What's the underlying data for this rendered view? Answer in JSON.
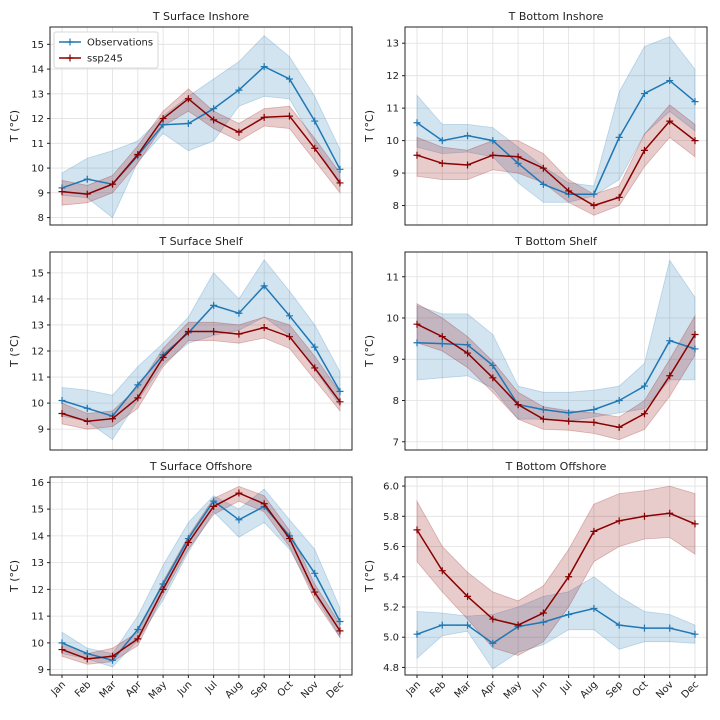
{
  "figure": {
    "colors": {
      "observations": "#1f77b4",
      "ssp245": "#8b0000",
      "grid": "#e0e0e0",
      "frame": "#222222"
    },
    "legend": {
      "placement": "top-left",
      "panel": 0,
      "entries": [
        "Observations",
        "ssp245"
      ]
    }
  },
  "chart_data": [
    {
      "type": "line",
      "title": "T Surface Inshore",
      "ylabel": "T (°C)",
      "categories": [
        "Jan",
        "Feb",
        "Mar",
        "Apr",
        "May",
        "Jun",
        "Jul",
        "Aug",
        "Sep",
        "Oct",
        "Nov",
        "Dec"
      ],
      "ylim": [
        7.7,
        15.7
      ],
      "yticks": [
        8,
        9,
        10,
        11,
        12,
        13,
        14,
        15
      ],
      "show_x_ticklabels": false,
      "grid": true,
      "series": [
        {
          "name": "Observations",
          "color": "#1f77b4",
          "values": [
            9.2,
            9.55,
            9.35,
            10.5,
            11.75,
            11.8,
            12.4,
            13.15,
            14.1,
            13.6,
            11.9,
            9.95
          ],
          "lower": [
            8.9,
            8.8,
            8.0,
            10.25,
            11.4,
            10.7,
            11.1,
            12.5,
            12.9,
            12.8,
            11.0,
            9.3
          ],
          "upper": [
            9.8,
            10.4,
            10.7,
            11.1,
            12.1,
            12.9,
            13.6,
            14.3,
            15.35,
            14.5,
            12.9,
            10.75
          ]
        },
        {
          "name": "ssp245",
          "color": "#8b0000",
          "values": [
            9.05,
            8.95,
            9.35,
            10.55,
            12.0,
            12.8,
            11.95,
            11.45,
            12.05,
            12.1,
            10.8,
            9.4
          ],
          "lower": [
            8.5,
            8.6,
            9.0,
            10.2,
            11.7,
            12.3,
            11.6,
            11.1,
            11.7,
            11.6,
            10.3,
            9.0
          ],
          "upper": [
            9.5,
            9.3,
            9.7,
            10.9,
            12.3,
            13.2,
            12.3,
            11.8,
            12.4,
            12.5,
            11.2,
            9.8
          ]
        }
      ]
    },
    {
      "type": "line",
      "title": "T Bottom Inshore",
      "ylabel": "T (°C)",
      "categories": [
        "Jan",
        "Feb",
        "Mar",
        "Apr",
        "May",
        "Jun",
        "Jul",
        "Aug",
        "Sep",
        "Oct",
        "Nov",
        "Dec"
      ],
      "ylim": [
        7.4,
        13.5
      ],
      "yticks": [
        8,
        9,
        10,
        11,
        12,
        13
      ],
      "show_x_ticklabels": false,
      "grid": true,
      "series": [
        {
          "name": "Observations",
          "color": "#1f77b4",
          "values": [
            10.55,
            10.0,
            10.15,
            10.0,
            9.3,
            8.65,
            8.35,
            8.35,
            10.1,
            11.45,
            11.85,
            11.2
          ],
          "lower": [
            9.8,
            9.6,
            9.65,
            9.5,
            8.7,
            8.1,
            8.1,
            8.3,
            8.8,
            10.2,
            10.9,
            10.3
          ],
          "upper": [
            11.4,
            10.5,
            10.5,
            10.4,
            9.8,
            9.2,
            8.7,
            8.6,
            11.5,
            12.9,
            13.2,
            12.2
          ]
        },
        {
          "name": "ssp245",
          "color": "#8b0000",
          "values": [
            9.55,
            9.3,
            9.25,
            9.55,
            9.5,
            9.15,
            8.45,
            8.0,
            8.25,
            9.7,
            10.6,
            10.0
          ],
          "lower": [
            8.9,
            8.8,
            8.8,
            9.1,
            9.0,
            8.7,
            8.1,
            7.7,
            8.0,
            9.2,
            10.1,
            9.5
          ],
          "upper": [
            10.1,
            9.8,
            9.7,
            10.0,
            10.0,
            9.6,
            8.8,
            8.35,
            8.6,
            10.2,
            11.1,
            10.5
          ]
        }
      ]
    },
    {
      "type": "line",
      "title": "T Surface Shelf",
      "ylabel": "T (°C)",
      "categories": [
        "Jan",
        "Feb",
        "Mar",
        "Apr",
        "May",
        "Jun",
        "Jul",
        "Aug",
        "Sep",
        "Oct",
        "Nov",
        "Dec"
      ],
      "ylim": [
        8.2,
        15.8
      ],
      "yticks": [
        9,
        10,
        11,
        12,
        13,
        14,
        15
      ],
      "show_x_ticklabels": false,
      "grid": true,
      "series": [
        {
          "name": "Observations",
          "color": "#1f77b4",
          "values": [
            10.1,
            9.8,
            9.5,
            10.7,
            11.85,
            12.7,
            13.75,
            13.45,
            14.5,
            13.35,
            12.15,
            10.45
          ],
          "lower": [
            9.5,
            9.3,
            8.6,
            10.1,
            11.5,
            12.3,
            12.6,
            12.8,
            13.3,
            12.6,
            11.3,
            9.9
          ],
          "upper": [
            10.6,
            10.5,
            10.3,
            11.4,
            12.3,
            13.3,
            15.0,
            14.0,
            15.5,
            14.3,
            13.0,
            11.2
          ]
        },
        {
          "name": "ssp245",
          "color": "#8b0000",
          "values": [
            9.6,
            9.3,
            9.4,
            10.2,
            11.75,
            12.75,
            12.75,
            12.65,
            12.9,
            12.55,
            11.35,
            10.05
          ],
          "lower": [
            9.2,
            9.0,
            9.1,
            9.8,
            11.4,
            12.4,
            12.4,
            12.3,
            12.5,
            12.1,
            10.9,
            9.7
          ],
          "upper": [
            10.0,
            9.6,
            9.7,
            10.6,
            12.1,
            13.1,
            13.1,
            13.0,
            13.3,
            13.0,
            11.8,
            10.4
          ]
        }
      ]
    },
    {
      "type": "line",
      "title": "T Bottom Shelf",
      "ylabel": "T (°C)",
      "categories": [
        "Jan",
        "Feb",
        "Mar",
        "Apr",
        "May",
        "Jun",
        "Jul",
        "Aug",
        "Sep",
        "Oct",
        "Nov",
        "Dec"
      ],
      "ylim": [
        6.8,
        11.6
      ],
      "yticks": [
        7,
        8,
        9,
        10,
        11
      ],
      "show_x_ticklabels": false,
      "grid": true,
      "series": [
        {
          "name": "Observations",
          "color": "#1f77b4",
          "values": [
            9.4,
            9.38,
            9.35,
            8.85,
            7.9,
            7.78,
            7.7,
            7.78,
            8.0,
            8.35,
            9.45,
            9.25
          ],
          "lower": [
            8.5,
            8.55,
            8.6,
            8.3,
            7.55,
            7.55,
            7.5,
            7.6,
            7.7,
            7.8,
            8.5,
            8.5
          ],
          "upper": [
            10.3,
            10.1,
            10.1,
            9.6,
            8.35,
            8.2,
            8.2,
            8.25,
            8.35,
            8.9,
            11.4,
            10.5
          ]
        },
        {
          "name": "ssp245",
          "color": "#8b0000",
          "values": [
            9.85,
            9.55,
            9.15,
            8.55,
            7.9,
            7.55,
            7.5,
            7.47,
            7.35,
            7.68,
            8.6,
            9.6
          ],
          "lower": [
            9.4,
            9.2,
            8.8,
            8.2,
            7.55,
            7.3,
            7.28,
            7.2,
            7.05,
            7.3,
            8.1,
            9.1
          ],
          "upper": [
            10.35,
            10.0,
            9.55,
            8.95,
            8.2,
            7.85,
            7.75,
            7.7,
            7.6,
            8.0,
            9.0,
            10.05
          ]
        }
      ]
    },
    {
      "type": "line",
      "title": "T Surface Offshore",
      "ylabel": "T (°C)",
      "categories": [
        "Jan",
        "Feb",
        "Mar",
        "Apr",
        "May",
        "Jun",
        "Jul",
        "Aug",
        "Sep",
        "Oct",
        "Nov",
        "Dec"
      ],
      "ylim": [
        8.8,
        16.2
      ],
      "yticks": [
        9,
        10,
        11,
        12,
        13,
        14,
        15,
        16
      ],
      "show_x_ticklabels": true,
      "grid": true,
      "series": [
        {
          "name": "Observations",
          "color": "#1f77b4",
          "values": [
            10.0,
            9.6,
            9.35,
            10.5,
            12.2,
            13.9,
            15.3,
            14.6,
            15.1,
            14.0,
            12.6,
            10.8
          ],
          "lower": [
            9.6,
            9.4,
            9.1,
            10.1,
            11.6,
            13.4,
            14.9,
            13.95,
            14.5,
            13.5,
            11.8,
            10.2
          ],
          "upper": [
            10.4,
            9.8,
            9.6,
            11.0,
            12.9,
            14.5,
            15.5,
            15.0,
            15.75,
            14.6,
            13.5,
            11.3
          ]
        },
        {
          "name": "ssp245",
          "color": "#8b0000",
          "values": [
            9.75,
            9.4,
            9.5,
            10.15,
            12.0,
            13.75,
            15.1,
            15.6,
            15.2,
            13.9,
            11.9,
            10.45
          ],
          "lower": [
            9.5,
            9.2,
            9.3,
            9.9,
            11.8,
            13.5,
            14.8,
            15.3,
            14.9,
            13.6,
            11.6,
            10.2
          ],
          "upper": [
            10.0,
            9.6,
            9.8,
            10.4,
            12.3,
            14.0,
            15.4,
            15.85,
            15.5,
            14.2,
            12.2,
            10.7
          ]
        }
      ]
    },
    {
      "type": "line",
      "title": "T Bottom Offshore",
      "ylabel": "T (°C)",
      "categories": [
        "Jan",
        "Feb",
        "Mar",
        "Apr",
        "May",
        "Jun",
        "Jul",
        "Aug",
        "Sep",
        "Oct",
        "Nov",
        "Dec"
      ],
      "ylim": [
        4.75,
        6.06
      ],
      "yticks": [
        4.8,
        5.0,
        5.2,
        5.4,
        5.6,
        5.8,
        6.0
      ],
      "show_x_ticklabels": true,
      "grid": true,
      "series": [
        {
          "name": "Observations",
          "color": "#1f77b4",
          "values": [
            5.02,
            5.08,
            5.08,
            4.96,
            5.07,
            5.1,
            5.15,
            5.19,
            5.08,
            5.06,
            5.06,
            5.02
          ],
          "lower": [
            4.86,
            5.01,
            5.04,
            4.79,
            4.9,
            4.95,
            5.05,
            5.05,
            4.92,
            4.97,
            4.97,
            4.96
          ],
          "upper": [
            5.17,
            5.16,
            5.14,
            5.15,
            5.2,
            5.27,
            5.3,
            5.4,
            5.27,
            5.17,
            5.15,
            5.08
          ]
        },
        {
          "name": "ssp245",
          "color": "#8b0000",
          "values": [
            5.71,
            5.44,
            5.27,
            5.12,
            5.08,
            5.16,
            5.4,
            5.7,
            5.77,
            5.8,
            5.82,
            5.75
          ],
          "lower": [
            5.5,
            5.3,
            5.12,
            4.93,
            4.88,
            4.97,
            5.2,
            5.5,
            5.6,
            5.65,
            5.66,
            5.55
          ],
          "upper": [
            5.9,
            5.6,
            5.43,
            5.3,
            5.24,
            5.34,
            5.58,
            5.88,
            5.95,
            5.97,
            6.0,
            5.95
          ]
        }
      ]
    }
  ]
}
